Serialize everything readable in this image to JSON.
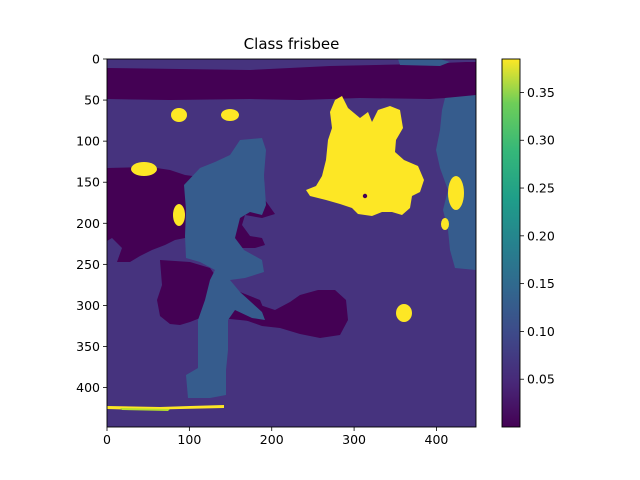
{
  "chart_data": {
    "type": "heatmap",
    "title": "Class frisbee",
    "xlabel": "",
    "ylabel": "",
    "x_range": [
      0,
      448
    ],
    "y_range": [
      0,
      448
    ],
    "y_inverted": true,
    "x_ticks": [
      "0",
      "100",
      "200",
      "300",
      "400"
    ],
    "y_ticks": [
      "0",
      "50",
      "100",
      "150",
      "200",
      "250",
      "300",
      "350",
      "400"
    ],
    "colorbar": {
      "colormap": "viridis",
      "range": [
        0.0,
        0.385
      ],
      "ticks": [
        "0.05",
        "0.10",
        "0.15",
        "0.20",
        "0.25",
        "0.30",
        "0.35"
      ]
    },
    "levels": {
      "very_low": 0.003,
      "low": 0.08,
      "mid": 0.12,
      "high": 0.385
    },
    "colors": {
      "very_low": "#440154",
      "low": "#46337e",
      "mid": "#365c8d",
      "high": "#fde725",
      "yellow_green": "#b5de2b"
    },
    "regions": [
      {
        "level": "very_low",
        "bbox_data": [
          0,
          8,
          448,
          45
        ]
      },
      {
        "level": "mid",
        "bbox_data": [
          395,
          0,
          448,
          10
        ]
      },
      {
        "level": "very_low",
        "bbox_data": [
          0,
          135,
          75,
          213
        ]
      },
      {
        "level": "very_low",
        "bbox_data": [
          95,
          130,
          200,
          230
        ]
      },
      {
        "level": "mid",
        "bbox_data": [
          130,
          120,
          200,
          280
        ]
      },
      {
        "level": "mid",
        "bbox_data": [
          110,
          280,
          150,
          400
        ]
      },
      {
        "level": "mid",
        "bbox_data": [
          400,
          60,
          448,
          260
        ]
      },
      {
        "level": "very_low",
        "bbox_data": [
          60,
          250,
          220,
          330
        ]
      },
      {
        "level": "very_low",
        "bbox_data": [
          230,
          290,
          290,
          340
        ]
      },
      {
        "level": "high",
        "bbox_data": [
          240,
          45,
          390,
          200
        ]
      },
      {
        "level": "high",
        "bbox_data": [
          30,
          125,
          65,
          145
        ]
      },
      {
        "level": "high",
        "bbox_data": [
          75,
          60,
          100,
          80
        ]
      },
      {
        "level": "high",
        "bbox_data": [
          140,
          60,
          165,
          80
        ]
      },
      {
        "level": "high",
        "bbox_data": [
          80,
          170,
          95,
          210
        ]
      },
      {
        "level": "high",
        "bbox_data": [
          410,
          140,
          435,
          195
        ]
      },
      {
        "level": "high",
        "bbox_data": [
          350,
          295,
          370,
          318
        ]
      },
      {
        "level": "high",
        "bbox_data": [
          0,
          420,
          145,
          428
        ]
      }
    ]
  }
}
